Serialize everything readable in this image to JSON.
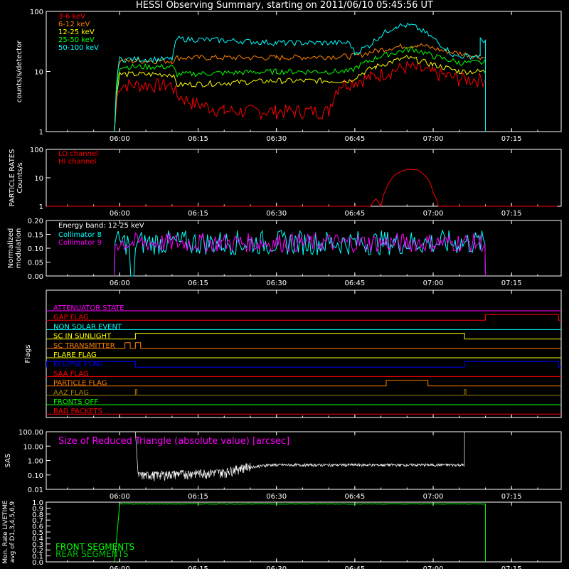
{
  "title": "HESSI Observing Summary, starting on 2011/06/10 05:45:56 UT",
  "time_ticks": [
    "06:00",
    "06:15",
    "06:30",
    "06:45",
    "07:00",
    "07:15"
  ],
  "colors": {
    "red": "#ff0000",
    "orange": "#ff8000",
    "yellow": "#ffff00",
    "green": "#00ff00",
    "cyan": "#00ffff",
    "magenta": "#ff00ff",
    "blue": "#0000ff",
    "brown": "#a08000",
    "white": "#ffffff"
  },
  "chart_data": [
    {
      "type": "line",
      "ylabel": "counts/s/detector",
      "yscale": "log",
      "ylim": [
        1,
        100
      ],
      "yticks": [
        "1",
        "10",
        "100"
      ],
      "series": [
        {
          "name": "3-6 keV",
          "color": "red",
          "points": [
            [
              "05:59",
              1
            ],
            [
              "06:00",
              6
            ],
            [
              "06:10",
              6
            ],
            [
              "06:11",
              4
            ],
            [
              "06:14",
              3
            ],
            [
              "06:20",
              2.2
            ],
            [
              "06:30",
              2.2
            ],
            [
              "06:40",
              2.2
            ],
            [
              "06:42",
              6
            ],
            [
              "06:48",
              8
            ],
            [
              "06:55",
              12
            ],
            [
              "07:00",
              9.5
            ],
            [
              "07:05",
              7.5
            ],
            [
              "07:10",
              7.5
            ],
            [
              "07:10",
              1
            ]
          ]
        },
        {
          "name": "6-12 keV",
          "color": "orange",
          "points": [
            [
              "05:59",
              1
            ],
            [
              "06:00",
              15
            ],
            [
              "06:10",
              15
            ],
            [
              "06:11",
              17
            ],
            [
              "06:30",
              17
            ],
            [
              "06:45",
              18
            ],
            [
              "06:52",
              25
            ],
            [
              "06:57",
              28
            ],
            [
              "07:02",
              22
            ],
            [
              "07:10",
              17
            ],
            [
              "07:10",
              1
            ]
          ]
        },
        {
          "name": "12-25 keV",
          "color": "yellow",
          "points": [
            [
              "05:59",
              1
            ],
            [
              "06:00",
              9
            ],
            [
              "06:10",
              9
            ],
            [
              "06:11",
              6
            ],
            [
              "06:30",
              7
            ],
            [
              "06:44",
              7
            ],
            [
              "06:49",
              12
            ],
            [
              "06:55",
              17
            ],
            [
              "07:00",
              13
            ],
            [
              "07:05",
              10
            ],
            [
              "07:10",
              10
            ],
            [
              "07:10",
              1
            ]
          ]
        },
        {
          "name": "25-50 keV",
          "color": "green",
          "points": [
            [
              "05:59",
              1
            ],
            [
              "06:00",
              12
            ],
            [
              "06:10",
              12
            ],
            [
              "06:11",
              9
            ],
            [
              "06:30",
              10
            ],
            [
              "06:44",
              10
            ],
            [
              "06:50",
              18
            ],
            [
              "06:56",
              24
            ],
            [
              "07:00",
              18
            ],
            [
              "07:05",
              14
            ],
            [
              "07:10",
              14
            ],
            [
              "07:10",
              1
            ]
          ]
        },
        {
          "name": "50-100 keV",
          "color": "cyan",
          "points": [
            [
              "05:59",
              1
            ],
            [
              "06:00",
              16
            ],
            [
              "06:10",
              16
            ],
            [
              "06:11",
              35
            ],
            [
              "06:20",
              33
            ],
            [
              "06:30",
              30
            ],
            [
              "06:44",
              30
            ],
            [
              "06:45",
              20
            ],
            [
              "06:48",
              28
            ],
            [
              "06:53",
              58
            ],
            [
              "06:56",
              58
            ],
            [
              "07:01",
              30
            ],
            [
              "07:04",
              18
            ],
            [
              "07:09",
              18
            ],
            [
              "07:09",
              33
            ],
            [
              "07:10",
              33
            ],
            [
              "07:10",
              1
            ]
          ]
        }
      ]
    },
    {
      "type": "line",
      "ylabel": "PARTICLE RATES Counts/s",
      "yscale": "log",
      "ylim": [
        1,
        100
      ],
      "yticks": [
        "1",
        "10",
        "100"
      ],
      "series": [
        {
          "name": "LO channel",
          "color": "red",
          "points": [
            [
              "05:46",
              1
            ],
            [
              "06:48",
              1
            ],
            [
              "06:49",
              1.8
            ],
            [
              "06:50",
              1
            ],
            [
              "06:51",
              4
            ],
            [
              "06:53",
              14
            ],
            [
              "06:55",
              20
            ],
            [
              "06:57",
              19
            ],
            [
              "06:59",
              9
            ],
            [
              "07:00",
              3
            ],
            [
              "07:01",
              1
            ],
            [
              "07:24",
              1
            ]
          ]
        },
        {
          "name": "HI channel",
          "color": "red",
          "points": []
        }
      ]
    },
    {
      "type": "line",
      "ylabel": "Normalized modulation",
      "annotation": "Energy band: 12-25 keV",
      "ylim": [
        0,
        0.2
      ],
      "yticks": [
        "0.00",
        "0.05",
        "0.10",
        "0.15",
        "0.20"
      ],
      "series": [
        {
          "name": "Collimator 8",
          "color": "cyan",
          "level": 0.12,
          "spread": 0.045
        },
        {
          "name": "Collimator 9",
          "color": "magenta",
          "level": 0.12,
          "spread": 0.035
        }
      ]
    },
    {
      "type": "line",
      "ylabel": "Flags",
      "flags": [
        {
          "name": "ATTENUATOR STATE",
          "color": "magenta",
          "on": []
        },
        {
          "name": "GAP FLAG",
          "color": "red",
          "on": [
            [
              "07:10",
              "07:24"
            ]
          ]
        },
        {
          "name": "NON SOLAR EVENT",
          "color": "cyan",
          "on": []
        },
        {
          "name": "SC IN SUNLIGHT",
          "color": "yellow",
          "on": [
            [
              "06:03",
              "07:06"
            ]
          ]
        },
        {
          "name": "SC TRANSMITTER",
          "color": "orange",
          "on": [
            [
              "06:01",
              "06:02"
            ],
            [
              "06:03",
              "06:04"
            ]
          ]
        },
        {
          "name": "FLARE FLAG",
          "color": "yellow",
          "on": []
        },
        {
          "name": "ECLIPSE FLAG",
          "color": "blue",
          "on": [
            [
              "05:46",
              "06:03"
            ],
            [
              "07:06",
              "07:24"
            ]
          ]
        },
        {
          "name": "SAA FLAG",
          "color": "red",
          "on": []
        },
        {
          "name": "PARTICLE FLAG",
          "color": "orange",
          "on": [
            [
              "06:51",
              "06:59"
            ]
          ]
        },
        {
          "name": "AAZ FLAG",
          "color": "brown",
          "on": [
            [
              "06:03",
              "06:03"
            ],
            [
              "07:06",
              "07:06"
            ]
          ]
        },
        {
          "name": "FRONTS OFF",
          "color": "green",
          "on": []
        },
        {
          "name": "BAD PACKETS",
          "color": "red",
          "on": []
        }
      ]
    },
    {
      "type": "line",
      "ylabel": "SAS",
      "annotation": "Size of Reduced Triangle (absolute value) [arcsec]",
      "yscale": "log",
      "ylim": [
        0.01,
        100
      ],
      "yticks": [
        "0.01",
        "0.10",
        "1.00",
        "10.00",
        "100.00"
      ],
      "series": [
        {
          "name": "Size of Reduced Triangle",
          "color": "white",
          "points": [
            [
              "06:03",
              100
            ],
            [
              "06:04",
              0.08
            ],
            [
              "06:10",
              0.06
            ],
            [
              "06:20",
              0.1
            ],
            [
              "06:25",
              0.3
            ],
            [
              "06:30",
              0.45
            ],
            [
              "06:45",
              0.45
            ],
            [
              "07:05",
              0.45
            ],
            [
              "07:06",
              100
            ]
          ]
        }
      ]
    },
    {
      "type": "line",
      "ylabel": "Mon. Rate LIVETIME avg of D1,3,4,5,6,9",
      "ylim": [
        0.0,
        1.0
      ],
      "yticks": [
        "0.0",
        "0.1",
        "0.2",
        "0.3",
        "0.4",
        "0.5",
        "0.6",
        "0.7",
        "0.8",
        "0.9",
        "1.0"
      ],
      "series": [
        {
          "name": "FRONT SEGMENTS",
          "color": "green",
          "points": [
            [
              "05:59",
              0
            ],
            [
              "06:00",
              0.97
            ],
            [
              "07:10",
              0.97
            ],
            [
              "07:10",
              0
            ]
          ]
        },
        {
          "name": "REAR SEGMENTS",
          "color": "green",
          "points": []
        }
      ]
    }
  ]
}
